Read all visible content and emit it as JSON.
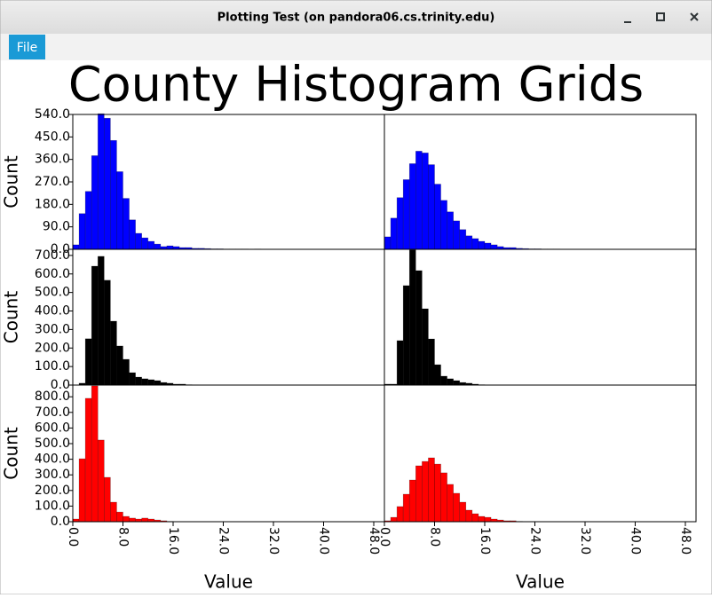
{
  "window": {
    "title": "Plotting Test (on pandora06.cs.trinity.edu)"
  },
  "menu": {
    "items": [
      "File"
    ]
  },
  "figure_title": "County Histogram Grids",
  "chart_data": [
    {
      "type": "histogram",
      "color": "#0000ff",
      "ylabel": "Count",
      "bins": [
        0,
        1,
        2,
        3,
        4,
        5,
        6,
        7,
        8,
        9,
        10,
        11,
        12,
        13,
        14,
        15,
        16,
        17,
        18,
        19,
        20,
        21,
        22,
        23,
        24,
        25,
        26,
        27,
        28,
        29,
        30
      ],
      "counts": [
        18,
        143,
        232,
        375,
        543,
        525,
        436,
        311,
        204,
        118,
        64,
        46,
        32,
        21,
        11,
        14,
        11,
        7,
        7,
        4,
        4,
        3,
        2,
        2,
        1,
        1,
        1,
        1,
        0,
        1
      ],
      "xlim": [
        0,
        49.7
      ],
      "ylim": [
        0,
        540
      ],
      "yticks": [
        {
          "value": 0,
          "label": "0.0"
        },
        {
          "value": 90,
          "label": "90.0"
        },
        {
          "value": 180,
          "label": "180.0"
        },
        {
          "value": 270,
          "label": "270.0"
        },
        {
          "value": 360,
          "label": "360.0"
        },
        {
          "value": 450,
          "label": "450.0"
        },
        {
          "value": 540,
          "label": "540.0"
        }
      ]
    },
    {
      "type": "histogram",
      "color": "#0000ff",
      "bins": [
        0,
        1,
        2,
        3,
        4,
        5,
        6,
        7,
        8,
        9,
        10,
        11,
        12,
        13,
        14,
        15,
        16,
        17,
        18,
        19,
        20,
        21,
        22,
        23,
        24,
        25,
        26,
        27,
        28,
        29,
        30
      ],
      "counts": [
        50,
        125,
        207,
        279,
        343,
        393,
        386,
        339,
        261,
        196,
        150,
        114,
        79,
        54,
        43,
        32,
        25,
        18,
        11,
        7,
        7,
        4,
        3,
        2,
        2,
        1,
        1,
        1,
        0,
        0
      ],
      "xlim": [
        0,
        49.7
      ],
      "ylim": [
        0,
        540
      ]
    },
    {
      "type": "histogram",
      "color": "#000000",
      "ylabel": "Count",
      "bins": [
        0,
        1,
        2,
        3,
        4,
        5,
        6,
        7,
        8,
        9,
        10,
        11,
        12,
        13,
        14,
        15,
        16,
        17,
        18,
        19,
        20
      ],
      "counts": [
        0,
        10,
        250,
        642,
        695,
        566,
        345,
        211,
        139,
        67,
        43,
        34,
        29,
        24,
        14,
        10,
        5,
        5,
        2,
        1
      ],
      "xlim": [
        0,
        49.7
      ],
      "ylim": [
        0,
        733
      ],
      "yticks": [
        {
          "value": 0,
          "label": "0.0"
        },
        {
          "value": 100,
          "label": "100.0"
        },
        {
          "value": 200,
          "label": "200.0"
        },
        {
          "value": 300,
          "label": "300.0"
        },
        {
          "value": 400,
          "label": "400.0"
        },
        {
          "value": 500,
          "label": "500.0"
        },
        {
          "value": 600,
          "label": "600.0"
        },
        {
          "value": 700,
          "label": "700.0"
        }
      ]
    },
    {
      "type": "histogram",
      "color": "#000000",
      "bins": [
        0,
        1,
        2,
        3,
        4,
        5,
        6,
        7,
        8,
        9,
        10,
        11,
        12,
        13,
        14,
        15,
        16
      ],
      "counts": [
        5,
        5,
        240,
        537,
        730,
        618,
        412,
        249,
        110,
        48,
        34,
        24,
        14,
        10,
        5,
        2
      ],
      "xlim": [
        0,
        49.7
      ],
      "ylim": [
        0,
        733
      ]
    },
    {
      "type": "histogram",
      "color": "#ff0000",
      "ylabel": "Count",
      "xlabel": "Value",
      "bins": [
        0,
        1,
        2,
        3,
        4,
        5,
        6,
        7,
        8,
        9,
        10,
        11,
        12,
        13,
        14,
        15,
        16
      ],
      "counts": [
        17,
        403,
        790,
        870,
        523,
        284,
        125,
        62,
        34,
        23,
        17,
        23,
        17,
        11,
        6,
        2
      ],
      "xlim": [
        0,
        49.7
      ],
      "ylim": [
        0,
        875
      ],
      "yticks": [
        {
          "value": 0,
          "label": "0.0"
        },
        {
          "value": 100,
          "label": "100.0"
        },
        {
          "value": 200,
          "label": "200.0"
        },
        {
          "value": 300,
          "label": "300.0"
        },
        {
          "value": 400,
          "label": "400.0"
        },
        {
          "value": 500,
          "label": "500.0"
        },
        {
          "value": 600,
          "label": "600.0"
        },
        {
          "value": 700,
          "label": "700.0"
        },
        {
          "value": 800,
          "label": "800.0"
        }
      ],
      "xticks": [
        {
          "value": 0,
          "label": "0.0"
        },
        {
          "value": 8,
          "label": "8.0"
        },
        {
          "value": 16,
          "label": "16.0"
        },
        {
          "value": 24,
          "label": "24.0"
        },
        {
          "value": 32,
          "label": "32.0"
        },
        {
          "value": 40,
          "label": "40.0"
        },
        {
          "value": 48,
          "label": "48.0"
        }
      ]
    },
    {
      "type": "histogram",
      "color": "#ff0000",
      "xlabel": "Value",
      "bins": [
        0,
        1,
        2,
        3,
        4,
        5,
        6,
        7,
        8,
        9,
        10,
        11,
        12,
        13,
        14,
        15,
        16,
        17,
        18,
        19,
        20,
        21,
        22
      ],
      "counts": [
        6,
        28,
        97,
        176,
        267,
        358,
        386,
        409,
        369,
        313,
        239,
        182,
        125,
        74,
        51,
        34,
        28,
        17,
        11,
        6,
        6,
        2
      ],
      "xlim": [
        0,
        49.7
      ],
      "ylim": [
        0,
        875
      ],
      "xticks": [
        {
          "value": 0,
          "label": "0.0"
        },
        {
          "value": 8,
          "label": "8.0"
        },
        {
          "value": 16,
          "label": "16.0"
        },
        {
          "value": 24,
          "label": "24.0"
        },
        {
          "value": 32,
          "label": "32.0"
        },
        {
          "value": 40,
          "label": "40.0"
        },
        {
          "value": 48,
          "label": "48.0"
        }
      ]
    }
  ]
}
